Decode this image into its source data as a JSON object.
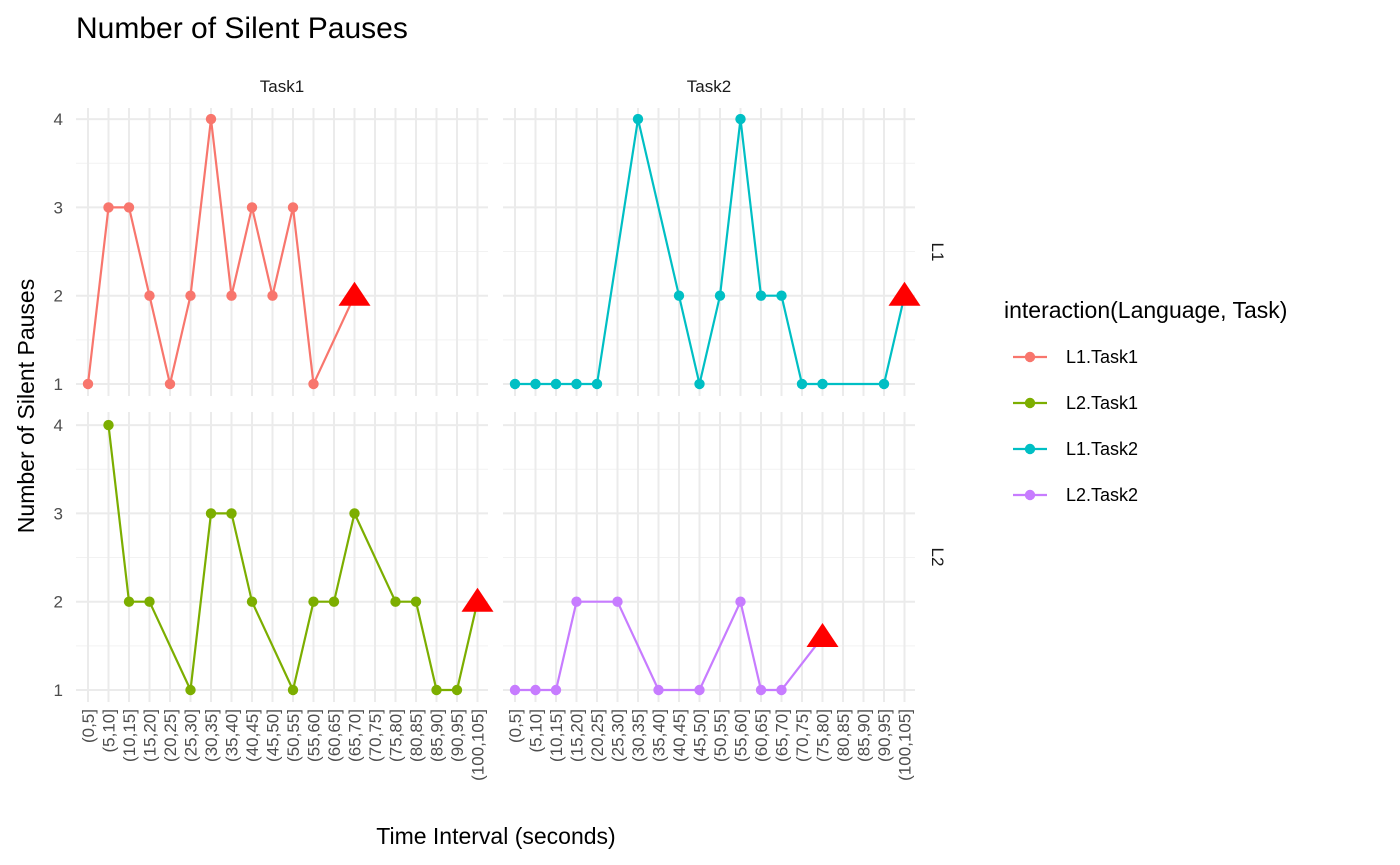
{
  "chart_data": {
    "type": "line",
    "title": "Number of Silent Pauses",
    "xlabel": "Time Interval (seconds)",
    "ylabel": "Number of Silent Pauses",
    "ylim": [
      1,
      4
    ],
    "y_ticks": [
      1,
      2,
      3,
      4
    ],
    "categories": [
      "(0,5]",
      "(5,10]",
      "(10,15]",
      "(15,20]",
      "(20,25]",
      "(25,30]",
      "(30,35]",
      "(35,40]",
      "(40,45]",
      "(45,50]",
      "(50,55]",
      "(55,60]",
      "(60,65]",
      "(65,70]",
      "(70,75]",
      "(75,80]",
      "(80,85]",
      "(85,90]",
      "(90,95]",
      "(100,105]"
    ],
    "facet_columns": [
      "Task1",
      "Task2"
    ],
    "facet_rows": [
      "L1",
      "L2"
    ],
    "legend": {
      "title": "interaction(Language, Task)",
      "position": "right",
      "entries": [
        {
          "label": "L1.Task1",
          "color": "#F8766D"
        },
        {
          "label": "L2.Task1",
          "color": "#7CAE00"
        },
        {
          "label": "L1.Task2",
          "color": "#00BFC4"
        },
        {
          "label": "L2.Task2",
          "color": "#C77CFF"
        }
      ]
    },
    "marker_color": "#FF0000",
    "series": [
      {
        "name": "L1.Task1",
        "color": "#F8766D",
        "row": 0,
        "col": 0,
        "points": [
          [
            "(0,5]",
            1
          ],
          [
            "(5,10]",
            3
          ],
          [
            "(10,15]",
            3
          ],
          [
            "(15,20]",
            2
          ],
          [
            "(20,25]",
            1
          ],
          [
            "(25,30]",
            2
          ],
          [
            "(30,35]",
            4
          ],
          [
            "(35,40]",
            2
          ],
          [
            "(40,45]",
            3
          ],
          [
            "(45,50]",
            2
          ],
          [
            "(50,55]",
            3
          ],
          [
            "(55,60]",
            1
          ]
        ],
        "marker": [
          "(65,70]",
          2
        ]
      },
      {
        "name": "L1.Task2",
        "color": "#00BFC4",
        "row": 0,
        "col": 1,
        "points": [
          [
            "(0,5]",
            1
          ],
          [
            "(5,10]",
            1
          ],
          [
            "(10,15]",
            1
          ],
          [
            "(15,20]",
            1
          ],
          [
            "(20,25]",
            1
          ],
          [
            "(30,35]",
            4
          ],
          [
            "(40,45]",
            2
          ],
          [
            "(45,50]",
            1
          ],
          [
            "(50,55]",
            2
          ],
          [
            "(55,60]",
            4
          ],
          [
            "(60,65]",
            2
          ],
          [
            "(65,70]",
            2
          ],
          [
            "(70,75]",
            1
          ],
          [
            "(75,80]",
            1
          ],
          [
            "(90,95]",
            1
          ]
        ],
        "marker": [
          "(100,105]",
          2
        ]
      },
      {
        "name": "L2.Task1",
        "color": "#7CAE00",
        "row": 1,
        "col": 0,
        "points": [
          [
            "(5,10]",
            4
          ],
          [
            "(10,15]",
            2
          ],
          [
            "(15,20]",
            2
          ],
          [
            "(25,30]",
            1
          ],
          [
            "(30,35]",
            3
          ],
          [
            "(35,40]",
            3
          ],
          [
            "(40,45]",
            2
          ],
          [
            "(50,55]",
            1
          ],
          [
            "(55,60]",
            2
          ],
          [
            "(60,65]",
            2
          ],
          [
            "(65,70]",
            3
          ],
          [
            "(75,80]",
            2
          ],
          [
            "(80,85]",
            2
          ],
          [
            "(85,90]",
            1
          ],
          [
            "(90,95]",
            1
          ]
        ],
        "marker": [
          "(100,105]",
          2
        ]
      },
      {
        "name": "L2.Task2",
        "color": "#C77CFF",
        "row": 1,
        "col": 1,
        "points": [
          [
            "(0,5]",
            1
          ],
          [
            "(5,10]",
            1
          ],
          [
            "(10,15]",
            1
          ],
          [
            "(15,20]",
            2
          ],
          [
            "(25,30]",
            2
          ],
          [
            "(35,40]",
            1
          ],
          [
            "(45,50]",
            1
          ],
          [
            "(55,60]",
            2
          ],
          [
            "(60,65]",
            1
          ],
          [
            "(65,70]",
            1
          ]
        ],
        "marker": [
          "(75,80]",
          1.6
        ]
      }
    ]
  }
}
